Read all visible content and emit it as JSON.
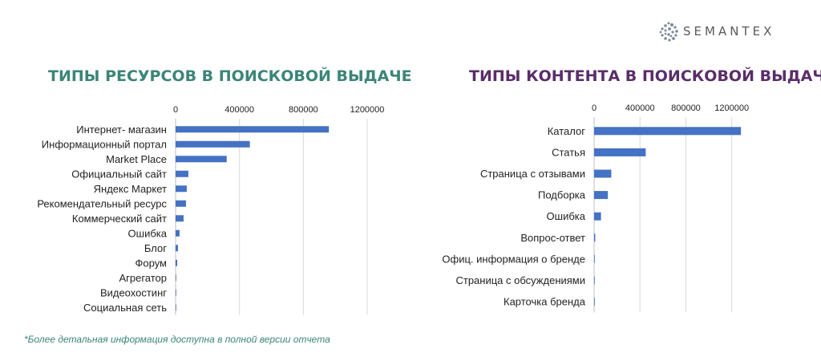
{
  "logo": {
    "text": "SEMANTEX"
  },
  "charts": {
    "left_title": "ТИПЫ РЕСУРСОВ В ПОИСКОВОЙ ВЫДАЧЕ",
    "right_title": "ТИПЫ КОНТЕНТА В ПОИСКОВОЙ ВЫДАЧЕ"
  },
  "footnote": "*Более детальная информация доступна в полной версии отчета",
  "colors": {
    "bar": "#4472c4",
    "grid": "#d9d9d9",
    "left_title": "#3b8578",
    "right_title": "#5a2d6a"
  },
  "chart_data": [
    {
      "type": "bar",
      "orientation": "horizontal",
      "title": "ТИПЫ РЕСУРСОВ В ПОИСКОВОЙ ВЫДАЧЕ",
      "categories": [
        "Интернет- магазин",
        "Информационный портал",
        "Market Place",
        "Официальный сайт",
        "Яндекс Маркет",
        "Рекомендательный ресурс",
        "Коммерческий сайт",
        "Ошибка",
        "Блог",
        "Форум",
        "Агрегатор",
        "Видеохостинг",
        "Социальная сеть"
      ],
      "values": [
        960000,
        465000,
        320000,
        80000,
        70000,
        65000,
        50000,
        25000,
        15000,
        10000,
        3000,
        2000,
        1000
      ],
      "xlim": [
        0,
        1200000
      ],
      "ticks": [
        "0",
        "400000",
        "800000",
        "1200000"
      ],
      "tick_values": [
        0,
        400000,
        800000,
        1200000
      ],
      "grid": true
    },
    {
      "type": "bar",
      "orientation": "horizontal",
      "title": "ТИПЫ КОНТЕНТА В ПОИСКОВОЙ ВЫДАЧЕ",
      "categories": [
        "Каталог",
        "Статья",
        "Страница с отзывами",
        "Подборка",
        "Ошибка",
        "Вопрос-ответ",
        "Офиц. информация о бренде",
        "Страница с обсуждениями",
        "Карточка бренда"
      ],
      "values": [
        1280000,
        450000,
        150000,
        120000,
        60000,
        10000,
        5000,
        2000,
        1000
      ],
      "xlim": [
        0,
        1300000
      ],
      "ticks": [
        "0",
        "400000",
        "800000",
        "1200000"
      ],
      "tick_values": [
        0,
        400000,
        800000,
        1200000
      ],
      "grid": true
    }
  ]
}
